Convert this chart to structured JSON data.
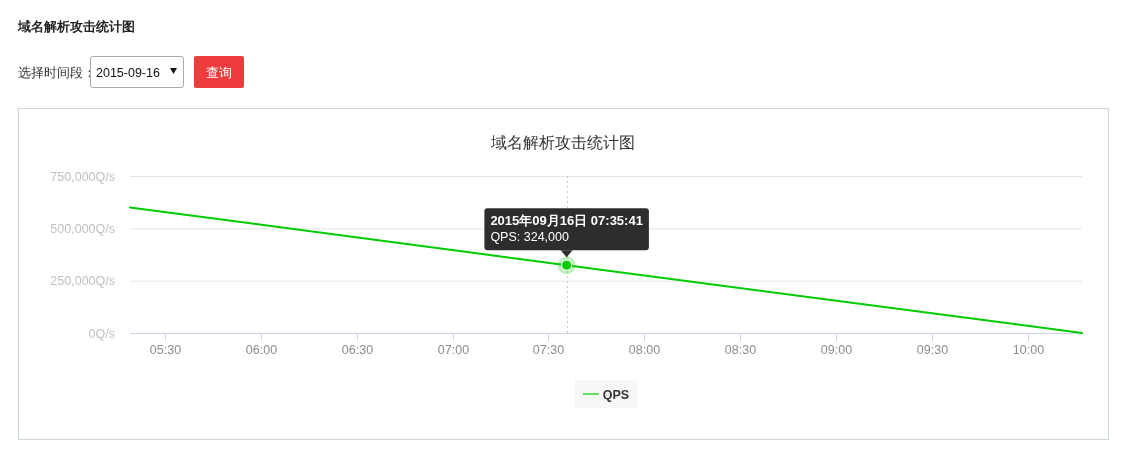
{
  "chart_data": {
    "type": "line",
    "title": "域名解析攻击统计图",
    "annotations": [
      "域名解析攻击统计图",
      "选择时间段：",
      "2015-09-16",
      "查询",
      {
        "text": "2015年09月16日 07:35:41\nQPS: 324,000",
        "x": 7.5947,
        "y": 324000
      }
    ],
    "series": [
      {
        "name": "QPS",
        "color": "#00cc00",
        "x": [
          5.317,
          7.5947,
          10.283
        ],
        "values": [
          600000,
          324000,
          0
        ]
      }
    ],
    "xlim": [
      5.317,
      10.283
    ],
    "xticks": [
      {
        "value": 5.5,
        "label": "05:30"
      },
      {
        "value": 6,
        "label": "06:00"
      },
      {
        "value": 6.5,
        "label": "06:30"
      },
      {
        "value": 7,
        "label": "07:00"
      },
      {
        "value": 7.5,
        "label": "07:30"
      },
      {
        "value": 8,
        "label": "08:00"
      },
      {
        "value": 8.5,
        "label": "08:30"
      },
      {
        "value": 9,
        "label": "09:00"
      },
      {
        "value": 9.5,
        "label": "09:30"
      },
      {
        "value": 10,
        "label": "10:00"
      }
    ],
    "ylim": [
      0,
      750000
    ],
    "yticks": [
      {
        "value": 0,
        "label": "0Q/s"
      },
      {
        "value": 250000,
        "label": "250,000Q/s"
      },
      {
        "value": 500000,
        "label": "500,000Q/s"
      },
      {
        "value": 750000,
        "label": "750,000Q/s"
      }
    ],
    "grid": "y",
    "legend": "bottom",
    "line_style": "solid",
    "ref_lines": [
      {
        "axis": "x",
        "value": 7.5947,
        "color": "#c8c8c8",
        "line_style": "dotted"
      }
    ]
  }
}
